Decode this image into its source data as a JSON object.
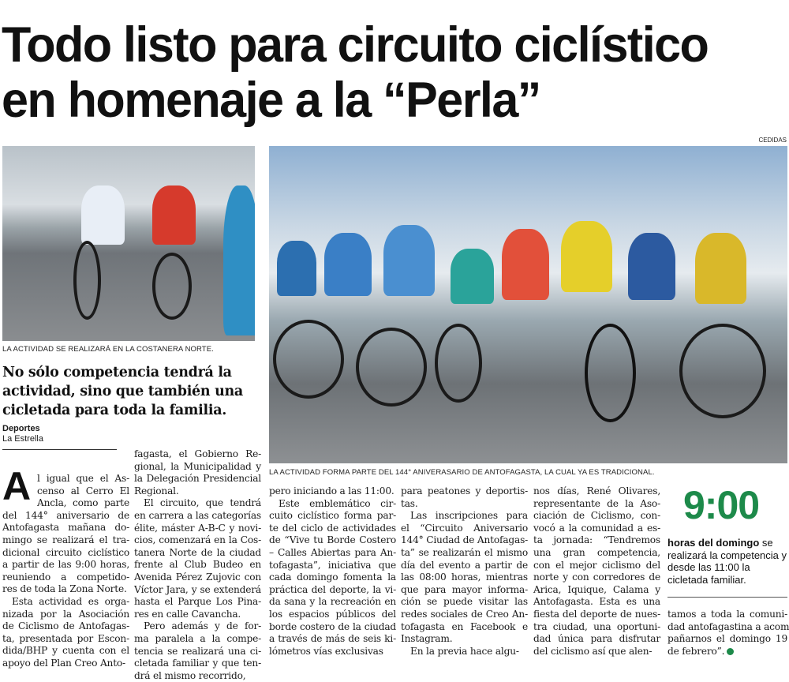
{
  "headline": [
    "Todo listo para circuito ciclístico",
    "en homenaje a la “Perla”"
  ],
  "photo_credit": "CEDIDAS",
  "photos": [
    {
      "caption": "LA ACTIVIDAD SE REALIZARÁ EN LA COSTANERA NORTE."
    },
    {
      "caption": "LA ACTIVIDAD FORMA PARTE DEL 144° ANIVERASARIO DE ANTOFAGASTA, LA CUAL YA ES TRADICIONAL."
    }
  ],
  "deck": [
    "No sólo competencia tendrá la",
    "actividad, sino que también una",
    "cicletada para toda la familia."
  ],
  "byline": {
    "section": "Deportes",
    "source": "La Estrella"
  },
  "dropcap": "A",
  "columns": [
    [
      {
        "cont": true,
        "lines": [
          "l igual que el As-",
          "censo al Cerro El",
          "Ancla, como parte",
          "del 144° aniversario de",
          "Antofagasta mañana do-",
          "mingo se realizará el tra-",
          "dicional circuito ciclístico",
          "a partir de las 9:00 horas,",
          "reuniendo a competido-",
          "res de toda la Zona Norte."
        ]
      },
      {
        "cont": false,
        "lines": [
          "Esta actividad es orga-",
          "nizada por la Asociación",
          "de Ciclismo de Antofagas-",
          "ta, presentada por Escon-",
          "dida/BHP y cuenta con el",
          "apoyo del Plan Creo Anto-"
        ]
      }
    ],
    [
      {
        "cont": true,
        "lines": [
          "fagasta, el Gobierno Re-",
          "gional, la Municipalidad y",
          "la Delegación Presidencial",
          "Regional."
        ]
      },
      {
        "cont": false,
        "lines": [
          "El circuito, que tendrá",
          "en carrera a las categorías",
          "élite, máster A-B-C y novi-",
          "cios, comenzará en la Cos-",
          "tanera Norte de la ciudad",
          "frente al Club Budeo en",
          "Avenida Pérez Zujovic con",
          "Víctor Jara, y se extenderá",
          "hasta el Parque Los Pina-",
          "res en calle Cavancha."
        ]
      },
      {
        "cont": false,
        "lines": [
          "Pero además y de for-",
          "ma paralela a la compe-",
          "tencia se realizará una ci-",
          "cletada familiar y que ten-",
          "drá el mismo recorrido,"
        ]
      }
    ],
    [
      {
        "cont": true,
        "lines": [
          "pero iniciando a las 11:00."
        ]
      },
      {
        "cont": false,
        "lines": [
          "Este emblemático cir-",
          "cuito ciclístico forma par-",
          "te del ciclo de actividades",
          "de “Vive tu Borde Costero",
          "– Calles Abiertas para An-",
          "tofagasta”, iniciativa que",
          "cada domingo fomenta la",
          "práctica del deporte, la vi-",
          "da sana y la recreación en",
          "los espacios públicos del",
          "borde costero de la ciudad",
          "a través de más de seis ki-",
          "lómetros vías exclusivas"
        ]
      }
    ],
    [
      {
        "cont": true,
        "lines": [
          "para peatones y deportis-",
          "tas."
        ]
      },
      {
        "cont": false,
        "lines": [
          "Las inscripciones para",
          "el “Circuito Aniversario",
          "144° Ciudad de Antofagas-",
          "ta” se realizarán el mismo",
          "día del evento a partir de",
          "las 08:00 horas, mientras",
          "que para mayor informa-",
          "ción se puede visitar las",
          "redes sociales de Creo An-",
          "tofagasta en Facebook e",
          "Instagram."
        ]
      },
      {
        "cont": false,
        "lines": [
          "En la previa hace algu-"
        ]
      }
    ],
    [
      {
        "cont": true,
        "lines": [
          "nos días, René Olivares,",
          "representante de la Aso-",
          "ciación de Ciclismo, con-",
          "vocó a la comunidad a es-",
          "ta jornada: “Tendremos",
          "una gran competencia,",
          "con el mejor ciclismo del",
          "norte y con corredores de",
          "Arica, Iquique, Calama y",
          "Antofagasta. Esta es una",
          "fiesta del deporte de nues-",
          "tra ciudad, una oportuni-",
          "dad única para disfrutar",
          "del ciclismo así que alen-"
        ]
      }
    ],
    [
      {
        "cont": true,
        "lines": [
          "tamos a toda la comuni-",
          "dad antofagastina a acom-",
          "pañarnos el domingo 19",
          "de febrero”."
        ]
      }
    ]
  ],
  "sidebar": {
    "big_number": "9:00",
    "bold_lead": "horas del domingo",
    "text": " se realizará la competencia y desde las 11:00 la cicletada familiar.",
    "accent_color": "#1d8a4a"
  },
  "end_icon": "end-of-article-mark-icon"
}
